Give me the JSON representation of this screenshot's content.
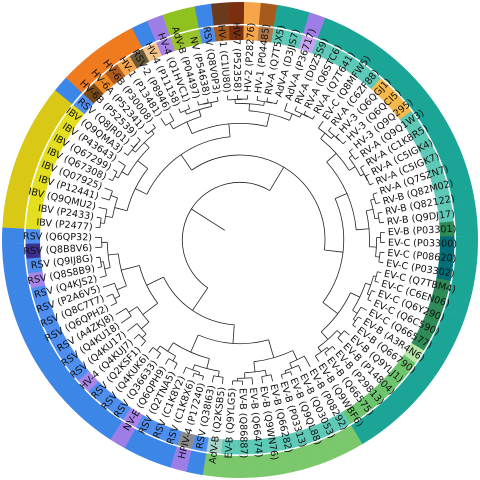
{
  "leaves": [
    "EV-B (P08292)",
    "EV-B (Q03053)",
    "EV-B (Q9QL88)",
    "EV-B (P03313)",
    "EV-B (Q66282)",
    "EV-B (Q9WN76)",
    "EV-B (Q66474)",
    "EV-B (Q86887)",
    "EV-B (Q9YLG5)",
    "AdV-B (Q2KSB5)",
    "RSV (Q38I63)",
    "HPIV-4 (P17240)",
    "RSV (C1K8X6)",
    "RSV (C1K8Y2)",
    "RSV (Q2TNA5)",
    "NV-E (Q6QPH9)",
    "RSV (Q36633)",
    "RSV (Q4KUK6)",
    "RSV (Q2KSF1)",
    "HV-4 (Q4KUJ7)",
    "RSV (Q4KU17)",
    "RSV (Q4KU18)",
    "RSV (A4ZKJ8)",
    "RSV (Q6QPH2)",
    "RSV (Q8C7T7)",
    "RSV (P2A6V5)",
    "RSV (Q4KJS2)",
    "RSV (Q8S8B9)",
    "RSV (Q9IJ8G)",
    "RSV (Q8B8V6)",
    "RSV (Q6QP32)",
    "IBV (P2477)",
    "IBV (P2433)",
    "IBV (Q9QMU2)",
    "IBV (P12441)",
    "IBV (Q07925)",
    "IBV (Q67308)",
    "IBV (Q67299)",
    "IBV (P43643)",
    "IBV (Q9QMA3)",
    "RSV (Q8JR01)",
    "HV-6B (P52539)",
    "HV-6A (P52341)",
    "HV-6B (P30008)",
    "HV-1 (P13481)",
    "RSV-2 (P8946)",
    "HV-4 (P11158)",
    "HV-4 (Q1HVC1)",
    "AdV-B (P04497)",
    "NV (P54638)",
    "RSV (Q8V0P3)",
    "HV-1 (C1IU80)",
    "HV-7 (P52358)",
    "HV-2 (P28276)",
    "HV-1 (P04485)",
    "RV-A (Q7T5X5)",
    "AdV-A (D3JIS7)",
    "AdV-A (P36717)",
    "RV-A (D0Z5S9)",
    "RV-A (Q6STC6)",
    "RV-A (Q7T641)",
    "EV-C (Q8MFW5)",
    "RV-A (C6ZF88)",
    "HV-3 (Q6QGJ1)",
    "HV-3 (Q6QCI5)",
    "HV-3 (Q9Q295)",
    "RV-A (Q9Q1W3)",
    "RV-A (C1K8R5)",
    "RV-A (C5IGK4)",
    "RV-A (C5IGK7)",
    "RV-A (Q7SZN7)",
    "RV-B (Q82M02)",
    "RV-B (Q82122)",
    "RV-B (Q9DJ17)",
    "EV-B (P03301)",
    "EV-C (P03300)",
    "EV-C (P08620)",
    "EV-C (P03302)",
    "EV-C (Q7TBM4)",
    "EV-C (C6EN06)",
    "EV-C (Q6Y290)",
    "EV-C (Q6C590)",
    "EV-C (Q66577)",
    "EV-B (A3R4N6)",
    "EV-B (Q66790)",
    "EV-B (Q9YLJ1)",
    "EV-B (P14804)",
    "EV-B (P29813)",
    "EV-B (Q66575)",
    "EV-B (Q9WBF6)"
  ],
  "inner_ring_colors": [
    "#5ec9b7",
    "#5ec9b7",
    "#5ec9b7",
    "#5ec9b7",
    "#5ec9b7",
    "#5ec9b7",
    "#5ec9b7",
    "#5ec9b7",
    "#5ec9b7",
    "#a7d3c9",
    "#4d8ef0",
    "#8c8c8c",
    "#4d8ef0",
    "#4d8ef0",
    "#4d8ef0",
    "#a884e8",
    "#4d8ef0",
    "#4d8ef0",
    "#4d8ef0",
    "#a884e8",
    "#4d8ef0",
    "#4d8ef0",
    "#4d8ef0",
    "#4d8ef0",
    "#4d8ef0",
    "#4d8ef0",
    "#4d8ef0",
    "#a884e8",
    "#4d8ef0",
    "#3b2f8f",
    "#4d8ef0",
    "#e3df1e",
    "#e3df1e",
    "#e3df1e",
    "#e3df1e",
    "#e3df1e",
    "#e3df1e",
    "#e3df1e",
    "#e3df1e",
    "#e3df1e",
    "#4d8ef0",
    "#7a4a14",
    "#f08a24",
    "#b05a1c",
    "#f5a64a",
    "#6a5a3c",
    "#f5c48a",
    "#a884e8",
    "#9ac22c",
    "#9ac22c",
    "#4d8ef0",
    "#a65a1c",
    "#7a2f10",
    "#f5a64a",
    "#b27a4a",
    "#5ec9b7",
    "#5ec9b7",
    "#c6a2f0",
    "#5ec9b7",
    "#5ec9b7",
    "#5ec9b7",
    "#5ec9b7",
    "#5ec9b7",
    "#f5b84a",
    "#f5b84a",
    "#f5b84a",
    "#5ec9b7",
    "#5ec9b7",
    "#5ec9b7",
    "#5ec9b7",
    "#5ec9b7",
    "#5ec9b7",
    "#5ec9b7",
    "#5ec9b7",
    "#2e8b57",
    "#006d77",
    "#006d77",
    "#006d77",
    "#2e8b57",
    "#2e8b57",
    "#2e8b57",
    "#2e8b57",
    "#2e8b57",
    "#b8e6a8",
    "#6cc46c",
    "#6cc46c",
    "#6cc46c",
    "#6cc46c",
    "#6cc46c",
    "#6cc46c"
  ],
  "outer_ring_colors": [
    "#7bc86c",
    "#7bc86c",
    "#7bc86c",
    "#7bc86c",
    "#7bc86c",
    "#7bc86c",
    "#7bc86c",
    "#7bc86c",
    "#7bc86c",
    "#7bc86c",
    "#3b86e6",
    "#9d7ee6",
    "#3b86e6",
    "#3b86e6",
    "#3b86e6",
    "#9d7ee6",
    "#3b86e6",
    "#3b86e6",
    "#3b86e6",
    "#3b86e6",
    "#3b86e6",
    "#3b86e6",
    "#3b86e6",
    "#3b86e6",
    "#3b86e6",
    "#3b86e6",
    "#3b86e6",
    "#3b86e6",
    "#3b86e6",
    "#3b86e6",
    "#3b86e6",
    "#d9c816",
    "#d9c816",
    "#d9c816",
    "#d9c816",
    "#d9c816",
    "#d9c816",
    "#d9c816",
    "#d9c816",
    "#d9c816",
    "#3b86e6",
    "#f07a1e",
    "#f07a1e",
    "#f07a1e",
    "#f07a1e",
    "#f07a1e",
    "#3b86e6",
    "#9d7ee6",
    "#8fc21e",
    "#8fc21e",
    "#3b86e6",
    "#6b3a1c",
    "#7a2f10",
    "#f5a64a",
    "#a65a1c",
    "#1aa597",
    "#1aa597",
    "#9d7ee6",
    "#1aa597",
    "#1aa597",
    "#1aa597",
    "#1aa597",
    "#1aa597",
    "#1aa597",
    "#1aa597",
    "#1aa597",
    "#1aa597",
    "#1aa597",
    "#1aa597",
    "#1aa597",
    "#1aa597",
    "#1aa597",
    "#1aa597",
    "#1aa597",
    "#1aa597",
    "#1aa597",
    "#1aa597",
    "#1aa597",
    "#1aa597",
    "#1aa597",
    "#1aa597",
    "#1aa597",
    "#1aa597",
    "#1aa597",
    "#1aa597",
    "#1aa597",
    "#1aa597",
    "#1aa597",
    "#1aa597",
    "#1aa597"
  ]
}
